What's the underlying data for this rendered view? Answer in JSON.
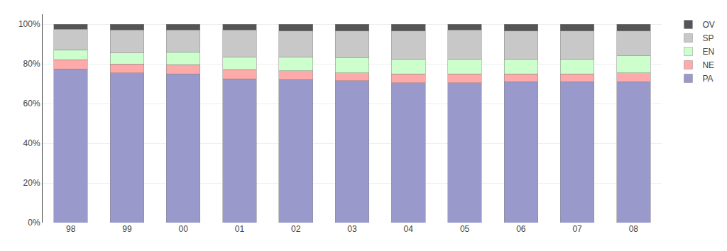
{
  "chart_data": {
    "type": "bar",
    "stacked": true,
    "categories": [
      "98",
      "99",
      "00",
      "01",
      "02",
      "03",
      "04",
      "05",
      "06",
      "07",
      "08"
    ],
    "series": [
      {
        "name": "PA",
        "color": "#9999cc",
        "values": [
          77.5,
          75.5,
          75.0,
          72.5,
          72.0,
          71.5,
          70.5,
          70.5,
          71.0,
          71.0,
          71.0
        ]
      },
      {
        "name": "NE",
        "color": "#ffaaaa",
        "values": [
          4.5,
          4.5,
          4.5,
          4.5,
          4.5,
          4.0,
          4.5,
          4.5,
          4.0,
          4.0,
          4.5
        ]
      },
      {
        "name": "EN",
        "color": "#ccffcc",
        "values": [
          5.0,
          5.5,
          6.5,
          6.5,
          7.0,
          7.5,
          7.5,
          7.5,
          7.5,
          7.5,
          8.5
        ]
      },
      {
        "name": "SP",
        "color": "#c8c8c8",
        "values": [
          10.5,
          11.5,
          11.0,
          13.5,
          13.0,
          13.5,
          14.0,
          14.5,
          14.0,
          14.0,
          12.5
        ]
      },
      {
        "name": "OV",
        "color": "#555555",
        "values": [
          2.5,
          3.0,
          3.0,
          3.0,
          3.5,
          3.5,
          3.5,
          3.0,
          3.5,
          3.5,
          3.5
        ]
      }
    ],
    "ylim": [
      0,
      105
    ],
    "yticks": [
      {
        "value": 0,
        "label": "0%"
      },
      {
        "value": 20,
        "label": "20%"
      },
      {
        "value": 40,
        "label": "40%"
      },
      {
        "value": 60,
        "label": "60%"
      },
      {
        "value": 80,
        "label": "80%"
      },
      {
        "value": 100,
        "label": "100%"
      }
    ],
    "grid": true,
    "legend": "upper right"
  }
}
